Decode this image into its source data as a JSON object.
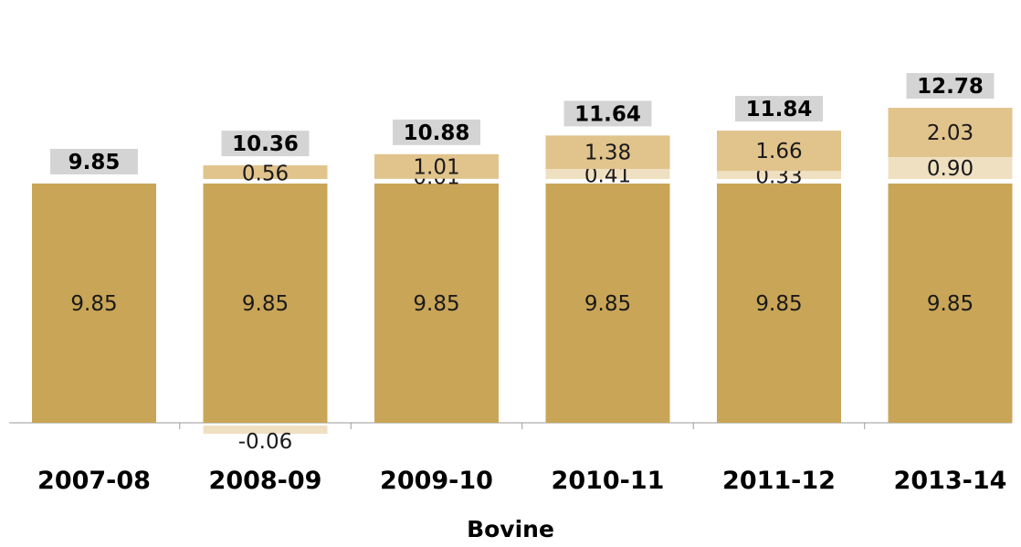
{
  "chart_data": {
    "type": "bar",
    "stacked": true,
    "categories": [
      "2007-08",
      "2008-09",
      "2009-10",
      "2010-11",
      "2011-12",
      "2013-14"
    ],
    "series": [
      {
        "values": [
          9.85,
          9.85,
          9.85,
          9.85,
          9.85,
          9.85
        ],
        "color": "#c9a557"
      },
      {
        "values": [
          null,
          -0.06,
          0.01,
          0.41,
          0.33,
          0.9
        ],
        "color": "#f0e0c2"
      },
      {
        "values": [
          null,
          0.56,
          1.01,
          1.38,
          1.66,
          2.03
        ],
        "color": "#e1c38c"
      }
    ],
    "value_labels": [
      [
        "9.85",
        null,
        null
      ],
      [
        "9.85",
        "-0.06",
        "0.56"
      ],
      [
        "9.85",
        "0.01",
        "1.01"
      ],
      [
        "9.85",
        "0.41",
        "1.38"
      ],
      [
        "9.85",
        "0.33",
        "1.66"
      ],
      [
        "9.85",
        "0.90",
        "2.03"
      ]
    ],
    "totals": [
      "9.85",
      "10.36",
      "10.88",
      "11.64",
      "11.84",
      "12.78"
    ],
    "total_box_color": "#d4d4d4",
    "xlabel": "Bovine",
    "ylabel": "",
    "ylim": [
      -0.5,
      13.2
    ],
    "grid": false,
    "legend": null
  }
}
